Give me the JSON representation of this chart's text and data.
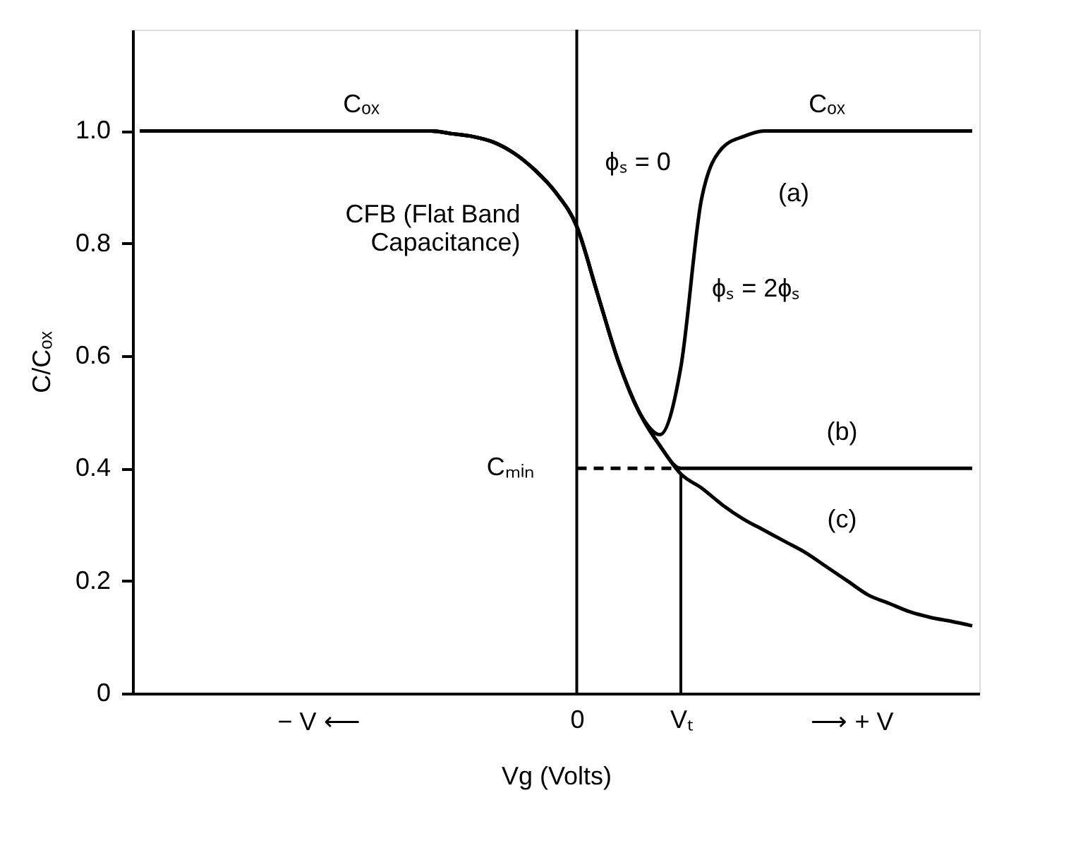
{
  "chart_data": {
    "type": "line",
    "xlabel": "Vg (Volts)",
    "ylabel": "C/Cₒₓ",
    "categories": [
      null,
      null,
      null,
      null,
      null,
      null,
      null,
      null,
      null,
      null,
      null,
      null,
      null,
      null,
      null,
      null,
      null,
      null,
      null,
      null,
      null,
      "0",
      null,
      null,
      null,
      null,
      "Vₜ",
      null,
      null,
      null,
      null,
      null,
      null,
      null,
      null,
      null,
      null,
      null,
      null,
      null,
      null
    ],
    "ylim": [
      0,
      1.18
    ],
    "yticks": [
      {
        "value": 0,
        "label": "0"
      },
      0.2,
      0.4,
      0.6,
      0.8,
      {
        "value": 1.0,
        "label": "1.0"
      }
    ],
    "grid": false,
    "legend": false,
    "marker": "none",
    "series": [
      {
        "name": "(a)",
        "color": "#000000",
        "line_style": "solid",
        "values": [
          1.0,
          1.0,
          1.0,
          1.0,
          1.0,
          1.0,
          1.0,
          1.0,
          1.0,
          1.0,
          1.0,
          1.0,
          1.0,
          1.0,
          1.0,
          0.995,
          0.99,
          0.98,
          0.96,
          0.93,
          0.89,
          0.83,
          0.71,
          0.59,
          0.5,
          0.46,
          0.58,
          0.88,
          0.97,
          0.99,
          1.0,
          1.0,
          1.0,
          1.0,
          1.0,
          1.0,
          1.0,
          1.0,
          1.0,
          1.0,
          1.0
        ]
      },
      {
        "name": "(b)",
        "color": "#000000",
        "line_style": "solid",
        "values": [
          1.0,
          1.0,
          1.0,
          1.0,
          1.0,
          1.0,
          1.0,
          1.0,
          1.0,
          1.0,
          1.0,
          1.0,
          1.0,
          1.0,
          1.0,
          0.995,
          0.99,
          0.98,
          0.96,
          0.93,
          0.89,
          0.83,
          0.71,
          0.59,
          0.5,
          0.44,
          0.4,
          0.4,
          0.4,
          0.4,
          0.4,
          0.4,
          0.4,
          0.4,
          0.4,
          0.4,
          0.4,
          0.4,
          0.4,
          0.4,
          0.4
        ]
      },
      {
        "name": "(c)",
        "color": "#000000",
        "line_style": "solid",
        "values": [
          1.0,
          1.0,
          1.0,
          1.0,
          1.0,
          1.0,
          1.0,
          1.0,
          1.0,
          1.0,
          1.0,
          1.0,
          1.0,
          1.0,
          1.0,
          0.995,
          0.99,
          0.98,
          0.96,
          0.93,
          0.89,
          0.83,
          0.71,
          0.59,
          0.5,
          0.44,
          0.39,
          0.365,
          0.335,
          0.31,
          0.29,
          0.27,
          0.25,
          0.225,
          0.2,
          0.175,
          0.16,
          0.145,
          0.135,
          0.128,
          0.12
        ]
      },
      {
        "color": "#000000",
        "line_style": "dashed",
        "values": [
          null,
          null,
          null,
          null,
          null,
          null,
          null,
          null,
          null,
          null,
          null,
          null,
          null,
          null,
          null,
          null,
          null,
          null,
          null,
          null,
          null,
          0.4,
          null,
          null,
          null,
          null,
          0.4,
          null,
          null,
          null,
          null,
          null,
          null,
          null,
          null,
          null,
          null,
          null,
          null,
          null,
          null
        ]
      },
      {
        "type": "bar",
        "color": "#000000",
        "values": [
          null,
          null,
          null,
          null,
          null,
          null,
          null,
          null,
          null,
          null,
          null,
          null,
          null,
          null,
          null,
          null,
          null,
          null,
          null,
          null,
          null,
          null,
          null,
          null,
          null,
          null,
          0.39,
          null,
          null,
          null,
          null,
          null,
          null,
          null,
          null,
          null,
          null,
          null,
          null,
          null,
          null
        ]
      }
    ],
    "ref_lines": [
      {
        "axis": "x",
        "value": "0",
        "color": "#000000",
        "line_style": "solid"
      }
    ],
    "annotations": [
      "Cₒₓ",
      "Cₒₓ",
      {
        "text": "ϕₛ = 0",
        "x": "0",
        "y": 0.83
      },
      {
        "text": "CFB (Flat Band\nCapacitance)",
        "x": "0",
        "y": 0.83
      },
      {
        "text": "ϕₛ = 2ϕₛ",
        "x": "Vₜ",
        "y": 0.58
      },
      {
        "text": "Cₘᵢₙ",
        "x": "0",
        "y": 0.4
      },
      "− V ⟵",
      "⟶ + V"
    ]
  }
}
